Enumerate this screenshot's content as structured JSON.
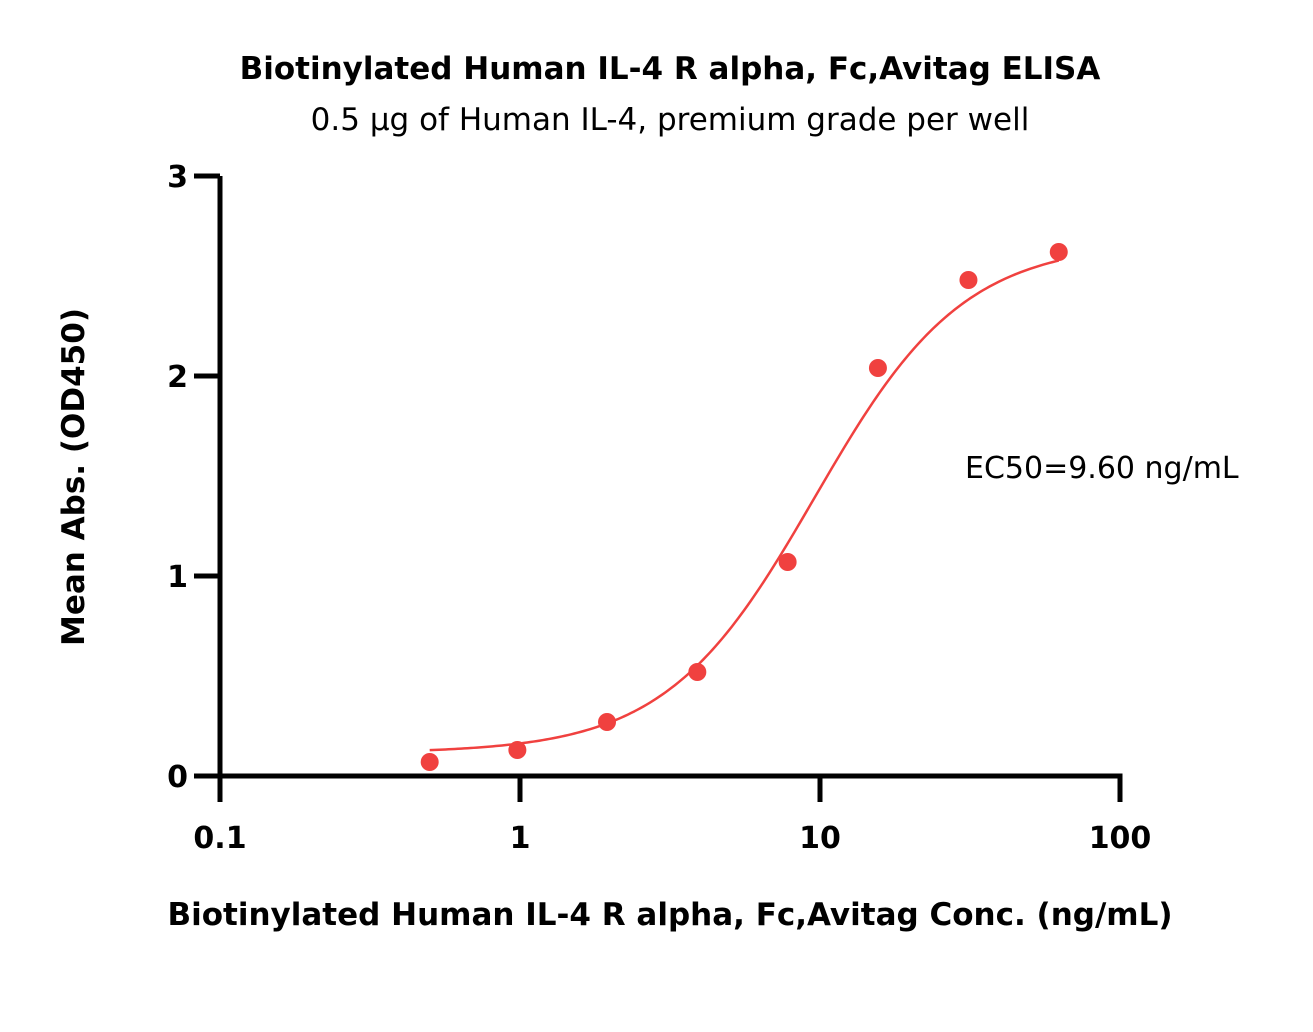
{
  "chart_data": {
    "type": "scatter",
    "title": "Biotinylated Human IL-4 R alpha, Fc,Avitag ELISA",
    "subtitle": "0.5 µg of Human IL-4, premium grade per well",
    "xlabel": "Biotinylated Human IL-4 R alpha, Fc,Avitag Conc. (ng/mL)",
    "ylabel": "Mean Abs. (OD450)",
    "xscale": "log",
    "xlim": [
      0.1,
      100
    ],
    "ylim": [
      0,
      3
    ],
    "xticks": [
      0.1,
      1,
      10,
      100
    ],
    "xtick_labels": [
      "0.1",
      "1",
      "10",
      "100"
    ],
    "yticks": [
      0,
      1,
      2,
      3
    ],
    "ytick_labels": [
      "0",
      "1",
      "2",
      "3"
    ],
    "grid": false,
    "color": "#f0413f",
    "points": {
      "x": [
        0.5,
        0.98,
        1.95,
        3.9,
        7.8,
        15.6,
        31.25,
        62.5
      ],
      "y": [
        0.07,
        0.13,
        0.27,
        0.52,
        1.07,
        2.04,
        2.48,
        2.62
      ]
    },
    "fit": {
      "model": "4PL",
      "bottom": 0.115,
      "top": 2.67,
      "ec50": 9.6,
      "hill": 1.75
    },
    "annotation": "EC50=9.60  ng/mL"
  }
}
